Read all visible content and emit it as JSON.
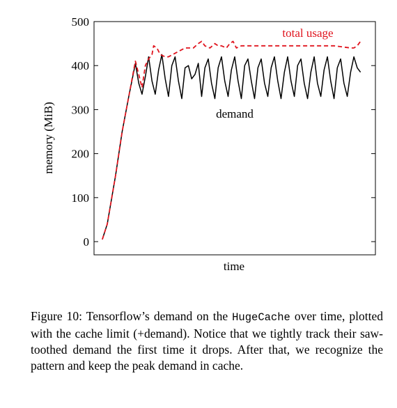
{
  "chart_data": {
    "type": "line",
    "title": "",
    "xlabel": "time",
    "ylabel": "memory (MiB)",
    "ylim": [
      -30,
      500
    ],
    "yticks": [
      0,
      100,
      200,
      300,
      400,
      500
    ],
    "xlim": [
      -5,
      165
    ],
    "grid": false,
    "legend": "none",
    "series": [
      {
        "name": "demand",
        "color": "#000000",
        "style": "solid",
        "x": [
          0,
          3,
          8,
          12,
          16,
          20,
          22,
          24,
          26,
          28,
          30,
          32,
          34,
          36,
          38,
          40,
          42,
          44,
          46,
          48,
          50,
          52,
          54,
          56,
          58,
          60,
          62,
          64,
          66,
          68,
          70,
          72,
          74,
          76,
          78,
          80,
          82,
          84,
          86,
          88,
          90,
          92,
          94,
          96,
          98,
          100,
          102,
          104,
          106,
          108,
          110,
          112,
          114,
          116,
          118,
          120,
          122,
          124,
          126,
          128,
          130,
          132,
          134,
          136,
          138,
          140,
          142,
          144,
          146,
          148,
          150,
          152,
          154,
          156
        ],
        "y": [
          5,
          40,
          150,
          250,
          330,
          405,
          360,
          335,
          375,
          420,
          365,
          335,
          390,
          425,
          370,
          330,
          400,
          420,
          365,
          325,
          395,
          400,
          370,
          380,
          405,
          330,
          395,
          415,
          360,
          325,
          395,
          420,
          365,
          330,
          390,
          420,
          365,
          325,
          400,
          415,
          365,
          325,
          395,
          415,
          360,
          330,
          395,
          420,
          365,
          325,
          385,
          420,
          365,
          330,
          400,
          415,
          360,
          325,
          385,
          420,
          360,
          330,
          390,
          420,
          365,
          325,
          395,
          415,
          360,
          330,
          385,
          420,
          395,
          385
        ]
      },
      {
        "name": "total usage",
        "color": "#e0141e",
        "style": "dashed",
        "x": [
          0,
          3,
          8,
          12,
          16,
          20,
          24,
          26,
          28,
          30,
          31,
          33,
          35,
          38,
          40,
          45,
          50,
          55,
          58,
          60,
          62,
          65,
          68,
          70,
          72,
          75,
          77,
          79,
          81,
          84,
          90,
          100,
          110,
          120,
          130,
          140,
          150,
          152,
          154,
          156
        ],
        "y": [
          5,
          40,
          150,
          250,
          330,
          410,
          350,
          400,
          415,
          425,
          445,
          440,
          425,
          420,
          420,
          430,
          440,
          440,
          450,
          455,
          445,
          440,
          450,
          445,
          445,
          440,
          450,
          455,
          440,
          445,
          445,
          445,
          445,
          445,
          445,
          445,
          440,
          440,
          445,
          455
        ]
      }
    ],
    "annotations": [
      {
        "text": "total usage",
        "color": "#e0141e"
      },
      {
        "text": "demand",
        "color": "#000000"
      }
    ]
  },
  "caption": {
    "prefix": "Figure 10: Tensorflow’s demand on the ",
    "code": "HugeCache",
    "suffix": " over time, plotted with the cache limit (+demand). Notice that we tightly track their saw-toothed demand the first time it drops. After that, we recognize the pattern and keep the peak demand in cache."
  }
}
